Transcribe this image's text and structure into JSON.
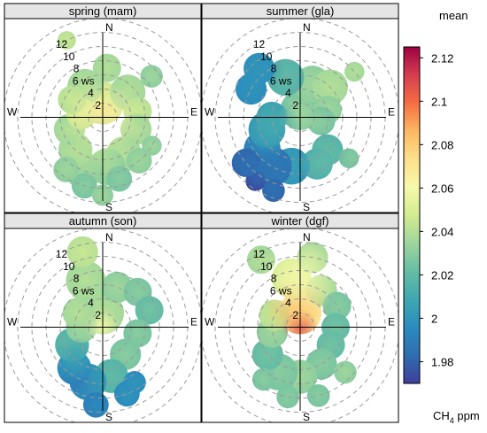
{
  "chart_data": {
    "type": "heatmap",
    "subtype": "polar-plot",
    "legend": {
      "title": "mean",
      "unit_label_prefix": "CH",
      "unit_label_sub": "4",
      "unit_label_suffix": " ppm",
      "placement": "right",
      "range": [
        1.97,
        2.125
      ],
      "ticks": [
        1.98,
        2.0,
        2.02,
        2.04,
        2.06,
        2.08,
        2.1,
        2.12
      ],
      "tick_labels": [
        "1.98",
        "2",
        "2.02",
        "2.04",
        "2.06",
        "2.08",
        "2.1",
        "2.12"
      ],
      "colors": [
        "#3f3f9c",
        "#2f6db0",
        "#2b8cbe",
        "#3fa7b0",
        "#66bda4",
        "#9ed59c",
        "#d3ec8f",
        "#f6f8ac",
        "#fde08b",
        "#fdb863",
        "#f46d43",
        "#d53e4f",
        "#9e0142"
      ]
    },
    "radial_axis": {
      "variable": "ws",
      "max": 14,
      "circle_values": [
        2,
        4,
        6,
        8,
        10,
        12,
        14
      ],
      "tick_labels": [
        "2",
        "4",
        "6 ws",
        "8",
        "10",
        "12"
      ]
    },
    "compass_labels": {
      "north": "N",
      "south": "S",
      "east": "E",
      "west": "W"
    },
    "panels": [
      {
        "title": "spring (mam)",
        "smooth": [
          {
            "wd": 0,
            "ws": 0,
            "value": 2.08,
            "sigma": 1.5
          },
          {
            "wd": 0,
            "ws": 0,
            "value": 2.065,
            "sigma": 3.2
          },
          {
            "wd": 190,
            "ws": 4,
            "value": 2.04,
            "sigma": 3.0
          }
        ],
        "blobs": [
          {
            "wd": 0,
            "ws": 2,
            "r": 3.0,
            "value": 2.05
          },
          {
            "wd": 45,
            "ws": 5,
            "r": 2.5,
            "value": 2.04
          },
          {
            "wd": 330,
            "ws": 5,
            "r": 2.5,
            "value": 2.04
          },
          {
            "wd": 335,
            "ws": 12,
            "r": 1.3,
            "value": 2.045
          },
          {
            "wd": 5,
            "ws": 7,
            "r": 2.0,
            "value": 2.04
          },
          {
            "wd": 50,
            "ws": 9,
            "r": 1.6,
            "value": 2.035
          },
          {
            "wd": 80,
            "ws": 5,
            "r": 2.0,
            "value": 2.045
          },
          {
            "wd": 110,
            "ws": 5,
            "r": 2.2,
            "value": 2.04
          },
          {
            "wd": 150,
            "ws": 6,
            "r": 2.5,
            "value": 2.04
          },
          {
            "wd": 175,
            "ws": 7,
            "r": 2.6,
            "value": 2.035
          },
          {
            "wd": 200,
            "ws": 8,
            "r": 2.6,
            "value": 2.035
          },
          {
            "wd": 220,
            "ws": 6,
            "r": 2.4,
            "value": 2.04
          },
          {
            "wd": 250,
            "ws": 5,
            "r": 2.2,
            "value": 2.04
          },
          {
            "wd": 280,
            "ws": 3,
            "r": 2.2,
            "value": 2.05
          },
          {
            "wd": 300,
            "ws": 5,
            "r": 2.0,
            "value": 2.045
          },
          {
            "wd": 165,
            "ws": 9,
            "r": 1.8,
            "value": 2.03
          },
          {
            "wd": 195,
            "ws": 10,
            "r": 1.8,
            "value": 2.03
          },
          {
            "wd": 140,
            "ws": 8,
            "r": 1.8,
            "value": 2.035
          },
          {
            "wd": 120,
            "ws": 8,
            "r": 1.4,
            "value": 2.035
          },
          {
            "wd": 215,
            "ws": 9,
            "r": 1.8,
            "value": 2.035
          },
          {
            "wd": 180,
            "ws": 11,
            "r": 1.5,
            "value": 2.035
          }
        ]
      },
      {
        "title": "summer (gla)",
        "smooth": [
          {
            "wd": 0,
            "ws": 0,
            "value": 2.035,
            "sigma": 2.0
          },
          {
            "wd": 215,
            "ws": 9,
            "value": 1.985,
            "sigma": 2.3
          },
          {
            "wd": 320,
            "ws": 9,
            "value": 2.0,
            "sigma": 2.2
          },
          {
            "wd": 250,
            "ws": 4,
            "value": 2.01,
            "sigma": 2.5
          },
          {
            "wd": 150,
            "ws": 7,
            "value": 2.02,
            "sigma": 2.5
          }
        ],
        "blobs": [
          {
            "wd": 0,
            "ws": 1,
            "r": 2.8,
            "value": 2.03
          },
          {
            "wd": 20,
            "ws": 5,
            "r": 2.6,
            "value": 2.035
          },
          {
            "wd": 45,
            "ws": 6,
            "r": 2.5,
            "value": 2.04
          },
          {
            "wd": 340,
            "ws": 6,
            "r": 2.6,
            "value": 2.02
          },
          {
            "wd": 320,
            "ws": 9,
            "r": 2.2,
            "value": 2.0
          },
          {
            "wd": 300,
            "ws": 8,
            "r": 2.2,
            "value": 2.0
          },
          {
            "wd": 75,
            "ws": 4,
            "r": 2.0,
            "value": 2.035
          },
          {
            "wd": 100,
            "ws": 3,
            "r": 2.0,
            "value": 2.03
          },
          {
            "wd": 140,
            "ws": 6,
            "r": 2.2,
            "value": 2.02
          },
          {
            "wd": 160,
            "ws": 7,
            "r": 2.2,
            "value": 2.015
          },
          {
            "wd": 190,
            "ws": 7,
            "r": 2.6,
            "value": 2.005
          },
          {
            "wd": 210,
            "ws": 8,
            "r": 2.8,
            "value": 1.99
          },
          {
            "wd": 230,
            "ws": 7,
            "r": 2.6,
            "value": 1.995
          },
          {
            "wd": 250,
            "ws": 5,
            "r": 2.6,
            "value": 2.005
          },
          {
            "wd": 270,
            "ws": 4,
            "r": 2.2,
            "value": 2.01
          },
          {
            "wd": 200,
            "ws": 11,
            "r": 1.6,
            "value": 1.985
          },
          {
            "wd": 215,
            "ws": 11,
            "r": 1.4,
            "value": 1.975
          },
          {
            "wd": 130,
            "ws": 9,
            "r": 1.4,
            "value": 2.03
          },
          {
            "wd": 50,
            "ws": 10,
            "r": 1.4,
            "value": 2.04
          },
          {
            "wd": 230,
            "ws": 10,
            "r": 2.0,
            "value": 1.985
          }
        ]
      },
      {
        "title": "autumn (son)",
        "smooth": [
          {
            "wd": 0,
            "ws": 0,
            "value": 2.06,
            "sigma": 1.6
          },
          {
            "wd": 205,
            "ws": 9,
            "value": 1.99,
            "sigma": 2.4
          },
          {
            "wd": 220,
            "ws": 6,
            "value": 2.005,
            "sigma": 2.0
          }
        ],
        "blobs": [
          {
            "wd": 0,
            "ws": 2,
            "r": 3.0,
            "value": 2.04
          },
          {
            "wd": 340,
            "ws": 7,
            "r": 2.8,
            "value": 2.04
          },
          {
            "wd": 345,
            "ws": 11,
            "r": 2.2,
            "value": 2.045
          },
          {
            "wd": 20,
            "ws": 6,
            "r": 2.2,
            "value": 2.035
          },
          {
            "wd": 45,
            "ws": 7,
            "r": 2.0,
            "value": 2.03
          },
          {
            "wd": 70,
            "ws": 7,
            "r": 2.0,
            "value": 2.025
          },
          {
            "wd": 100,
            "ws": 5,
            "r": 2.0,
            "value": 2.03
          },
          {
            "wd": 140,
            "ws": 5,
            "r": 2.2,
            "value": 2.03
          },
          {
            "wd": 170,
            "ws": 7,
            "r": 2.4,
            "value": 2.02
          },
          {
            "wd": 195,
            "ws": 8,
            "r": 2.6,
            "value": 2.005
          },
          {
            "wd": 215,
            "ws": 7,
            "r": 2.4,
            "value": 2.0
          },
          {
            "wd": 240,
            "ws": 5,
            "r": 2.4,
            "value": 2.02
          },
          {
            "wd": 270,
            "ws": 3,
            "r": 2.2,
            "value": 2.035
          },
          {
            "wd": 300,
            "ws": 4,
            "r": 2.2,
            "value": 2.04
          },
          {
            "wd": 160,
            "ws": 10,
            "r": 1.8,
            "value": 2.0
          },
          {
            "wd": 185,
            "ws": 11,
            "r": 1.8,
            "value": 1.995
          },
          {
            "wd": 150,
            "ws": 9,
            "r": 1.6,
            "value": 2.0
          }
        ]
      },
      {
        "title": "winter (dgf)",
        "smooth": [
          {
            "wd": 0,
            "ws": 0,
            "value": 2.11,
            "sigma": 1.6
          },
          {
            "wd": 350,
            "ws": 3,
            "value": 2.085,
            "sigma": 2.8
          },
          {
            "wd": 0,
            "ws": 7,
            "value": 2.06,
            "sigma": 3.5
          }
        ],
        "blobs": [
          {
            "wd": 0,
            "ws": 2,
            "r": 3.0,
            "value": 2.07
          },
          {
            "wd": 350,
            "ws": 7,
            "r": 2.8,
            "value": 2.05
          },
          {
            "wd": 10,
            "ws": 10,
            "r": 2.2,
            "value": 2.04
          },
          {
            "wd": 330,
            "ws": 11,
            "r": 2.0,
            "value": 2.04
          },
          {
            "wd": 30,
            "ws": 6,
            "r": 2.2,
            "value": 2.04
          },
          {
            "wd": 60,
            "ws": 6,
            "r": 2.0,
            "value": 2.03
          },
          {
            "wd": 90,
            "ws": 5,
            "r": 2.0,
            "value": 2.025
          },
          {
            "wd": 120,
            "ws": 5,
            "r": 2.0,
            "value": 2.025
          },
          {
            "wd": 150,
            "ws": 6,
            "r": 2.2,
            "value": 2.03
          },
          {
            "wd": 180,
            "ws": 7,
            "r": 2.4,
            "value": 2.035
          },
          {
            "wd": 205,
            "ws": 7,
            "r": 2.6,
            "value": 2.03
          },
          {
            "wd": 230,
            "ws": 6,
            "r": 2.2,
            "value": 2.025
          },
          {
            "wd": 260,
            "ws": 4,
            "r": 2.2,
            "value": 2.035
          },
          {
            "wd": 295,
            "ws": 4,
            "r": 2.2,
            "value": 2.045
          },
          {
            "wd": 165,
            "ws": 10,
            "r": 1.6,
            "value": 2.03
          },
          {
            "wd": 190,
            "ws": 10,
            "r": 1.6,
            "value": 2.03
          },
          {
            "wd": 135,
            "ws": 9,
            "r": 1.6,
            "value": 2.035
          },
          {
            "wd": 215,
            "ws": 9,
            "r": 1.6,
            "value": 2.03
          }
        ]
      }
    ]
  }
}
